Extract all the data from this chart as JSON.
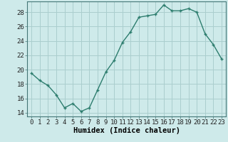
{
  "x": [
    0,
    1,
    2,
    3,
    4,
    5,
    6,
    7,
    8,
    9,
    10,
    11,
    12,
    13,
    14,
    15,
    16,
    17,
    18,
    19,
    20,
    21,
    22,
    23
  ],
  "y": [
    19.5,
    18.5,
    17.8,
    16.5,
    14.7,
    15.3,
    14.2,
    14.7,
    17.2,
    19.7,
    21.3,
    23.8,
    25.3,
    27.3,
    27.5,
    27.7,
    29.0,
    28.2,
    28.2,
    28.5,
    28.0,
    25.0,
    23.5,
    21.5
  ],
  "line_color": "#2d7d6e",
  "marker": "+",
  "bg_color": "#ceeaea",
  "grid_color": "#aacece",
  "xlabel": "Humidex (Indice chaleur)",
  "xlim": [
    -0.5,
    23.5
  ],
  "ylim": [
    13.5,
    29.5
  ],
  "yticks": [
    14,
    16,
    18,
    20,
    22,
    24,
    26,
    28
  ],
  "xticks": [
    0,
    1,
    2,
    3,
    4,
    5,
    6,
    7,
    8,
    9,
    10,
    11,
    12,
    13,
    14,
    15,
    16,
    17,
    18,
    19,
    20,
    21,
    22,
    23
  ],
  "xtick_labels": [
    "0",
    "1",
    "2",
    "3",
    "4",
    "5",
    "6",
    "7",
    "8",
    "9",
    "10",
    "11",
    "12",
    "13",
    "14",
    "15",
    "16",
    "17",
    "18",
    "19",
    "20",
    "21",
    "22",
    "23"
  ],
  "xlabel_fontsize": 7.5,
  "tick_fontsize": 6.5,
  "linewidth": 1.0,
  "markersize": 3.5,
  "spine_color": "#447777"
}
